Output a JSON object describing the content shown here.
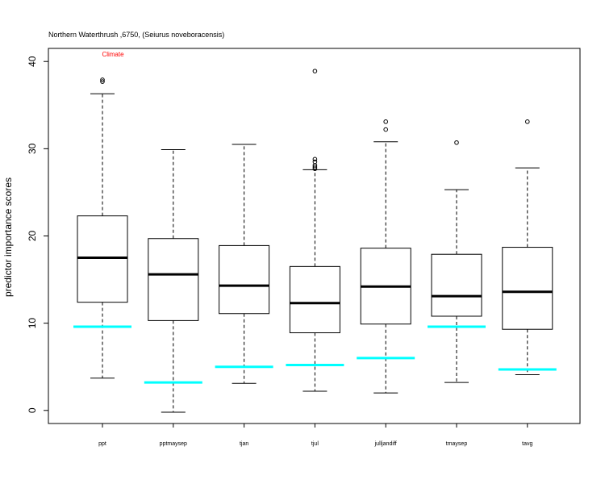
{
  "chart_data": {
    "type": "boxplot",
    "title": "Northern Waterthrush ,6750, (Seiurus noveboracensis)",
    "annotation": "Climate",
    "xlabel": "",
    "ylabel": "predictor importance scores",
    "ylim": [
      -1.5,
      41.5
    ],
    "yticks": [
      0,
      10,
      20,
      30,
      40
    ],
    "yticklabels": [
      "0",
      "10",
      "20",
      "30",
      "40"
    ],
    "grid": false,
    "categories": [
      "ppt",
      "pptmaysep",
      "tjan",
      "tjul",
      "julljandiff",
      "tmaysep",
      "tavg"
    ],
    "boxes": [
      {
        "whisker_low": 3.7,
        "q1": 12.4,
        "median": 17.5,
        "q3": 22.3,
        "whisker_high": 36.3,
        "outliers": [
          37.7,
          37.9
        ]
      },
      {
        "whisker_low": -0.2,
        "q1": 10.3,
        "median": 15.6,
        "q3": 19.7,
        "whisker_high": 29.9,
        "outliers": []
      },
      {
        "whisker_low": 3.1,
        "q1": 11.1,
        "median": 14.3,
        "q3": 18.9,
        "whisker_high": 30.5,
        "outliers": []
      },
      {
        "whisker_low": 2.2,
        "q1": 8.9,
        "median": 12.3,
        "q3": 16.5,
        "whisker_high": 27.6,
        "outliers": [
          27.7,
          27.9,
          28.1,
          28.5,
          28.8,
          38.9
        ]
      },
      {
        "whisker_low": 2.0,
        "q1": 9.9,
        "median": 14.2,
        "q3": 18.6,
        "whisker_high": 30.8,
        "outliers": [
          32.2,
          33.1
        ]
      },
      {
        "whisker_low": 3.2,
        "q1": 10.8,
        "median": 13.1,
        "q3": 17.9,
        "whisker_high": 25.3,
        "outliers": [
          30.7
        ]
      },
      {
        "whisker_low": 4.1,
        "q1": 9.3,
        "median": 13.6,
        "q3": 18.7,
        "whisker_high": 27.8,
        "outliers": [
          33.1
        ]
      }
    ],
    "reference_values": [
      9.6,
      3.2,
      5.0,
      5.2,
      6.0,
      9.6,
      4.7
    ],
    "reference_color": "#00ffff",
    "box_color": "#000000"
  }
}
